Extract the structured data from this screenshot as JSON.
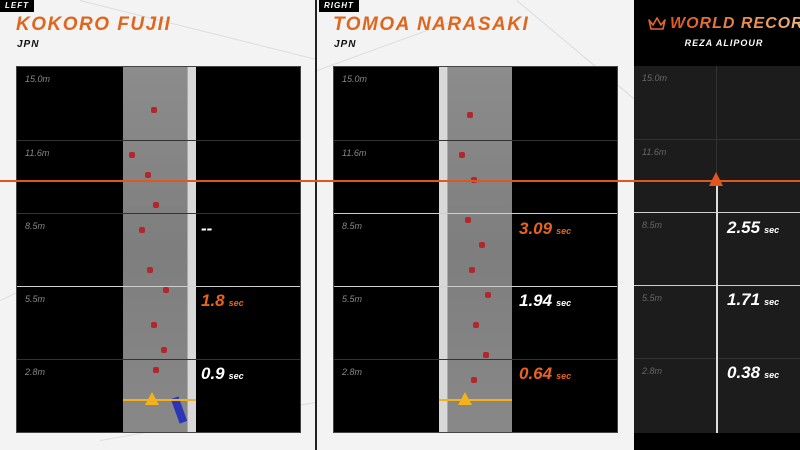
{
  "left": {
    "tag": "LEFT",
    "athlete": "KOKORO FUJII",
    "country": "JPN",
    "heights": [
      "15.0m",
      "11.6m",
      "8.5m",
      "5.5m",
      "2.8m"
    ],
    "splits": [
      {
        "height": "8.5m",
        "value": "--",
        "unit": "",
        "highlight": false
      },
      {
        "height": "5.5m",
        "value": "1.8",
        "unit": "sec",
        "highlight": true
      },
      {
        "height": "2.8m",
        "value": "0.9",
        "unit": "sec",
        "highlight": false
      }
    ]
  },
  "right": {
    "tag": "RIGHT",
    "athlete": "TOMOA NARASAKI",
    "country": "JPN",
    "heights": [
      "15.0m",
      "11.6m",
      "8.5m",
      "5.5m",
      "2.8m"
    ],
    "splits": [
      {
        "height": "8.5m",
        "value": "3.09",
        "unit": "sec",
        "highlight": true
      },
      {
        "height": "5.5m",
        "value": "1.94",
        "unit": "sec",
        "highlight": false
      },
      {
        "height": "2.8m",
        "value": "0.64",
        "unit": "sec",
        "highlight": true
      }
    ]
  },
  "world_record": {
    "title": "WORLD RECORD",
    "holder": "REZA ALIPOUR",
    "icon": "crown-icon",
    "heights": [
      "15.0m",
      "11.6m",
      "8.5m",
      "5.5m",
      "2.8m"
    ],
    "splits": [
      {
        "height": "8.5m",
        "value": "2.55",
        "unit": "sec"
      },
      {
        "height": "5.5m",
        "value": "1.71",
        "unit": "sec"
      },
      {
        "height": "2.8m",
        "value": "0.38",
        "unit": "sec"
      }
    ]
  },
  "colors": {
    "accent": "#e0661e",
    "marker_yellow": "#f3b21c"
  }
}
